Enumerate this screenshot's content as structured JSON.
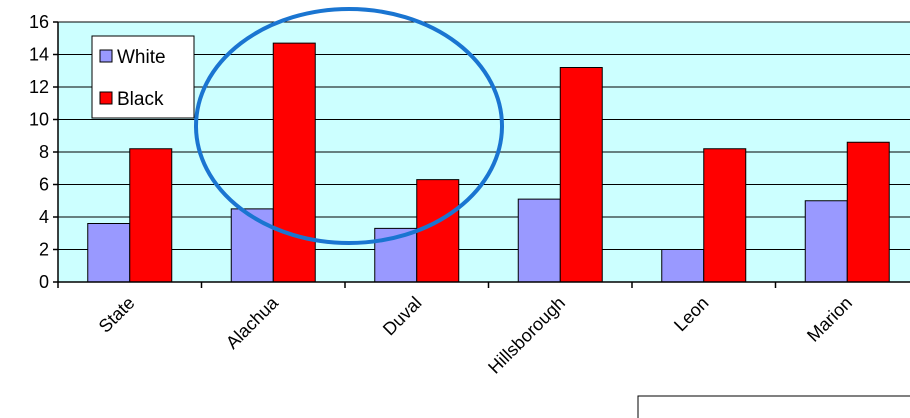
{
  "chart_data": {
    "type": "bar",
    "categories": [
      "State",
      "Alachua",
      "Duval",
      "Hillsborough",
      "Leon",
      "Marion"
    ],
    "series": [
      {
        "name": "White",
        "values": [
          3.6,
          4.5,
          3.3,
          5.1,
          2.0,
          5.0
        ],
        "color": "#9999ff"
      },
      {
        "name": "Black",
        "values": [
          8.2,
          14.7,
          6.3,
          13.2,
          8.2,
          8.6
        ],
        "color": "#ff0000"
      }
    ],
    "ylim": [
      0,
      16
    ],
    "yticks": [
      0,
      2,
      4,
      6,
      8,
      10,
      12,
      14,
      16
    ],
    "plot_background": "#ccffff",
    "grid": true,
    "legend_position": "top-left",
    "highlight_ellipse_color": "#1a75d1"
  }
}
